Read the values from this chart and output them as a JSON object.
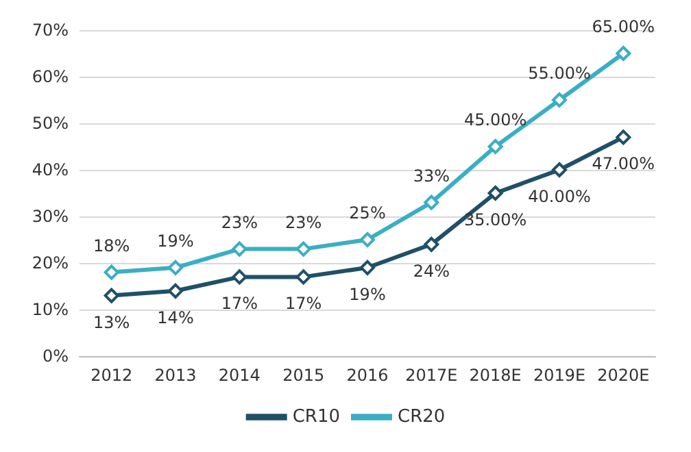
{
  "chart_data": {
    "type": "line",
    "categories": [
      "2012",
      "2013",
      "2014",
      "2015",
      "2016",
      "2017E",
      "2018E",
      "2019E",
      "2020E"
    ],
    "series": [
      {
        "name": "CR10",
        "color": "#1f5068",
        "values": [
          13,
          14,
          17,
          17,
          19,
          24,
          35,
          40,
          47
        ],
        "value_labels": [
          "13%",
          "14%",
          "17%",
          "17%",
          "19%",
          "24%",
          "35.00%",
          "40.00%",
          "47.00%"
        ]
      },
      {
        "name": "CR20",
        "color": "#3aaec4",
        "values": [
          18,
          19,
          23,
          23,
          25,
          33,
          45,
          55,
          65
        ],
        "value_labels": [
          "18%",
          "19%",
          "23%",
          "23%",
          "25%",
          "33%",
          "45.00%",
          "55.00%",
          "65.00%"
        ]
      }
    ],
    "ylim": [
      0,
      70
    ],
    "yticks": [
      {
        "value": 0,
        "label": "0%"
      },
      {
        "value": 10,
        "label": "10%"
      },
      {
        "value": 20,
        "label": "20%"
      },
      {
        "value": 30,
        "label": "30%"
      },
      {
        "value": 40,
        "label": "40%"
      },
      {
        "value": 50,
        "label": "50%"
      },
      {
        "value": 60,
        "label": "60%"
      },
      {
        "value": 70,
        "label": "70%"
      }
    ],
    "grid": "y",
    "legend": "bottom",
    "marker": "diamond",
    "line_style": "solid"
  }
}
